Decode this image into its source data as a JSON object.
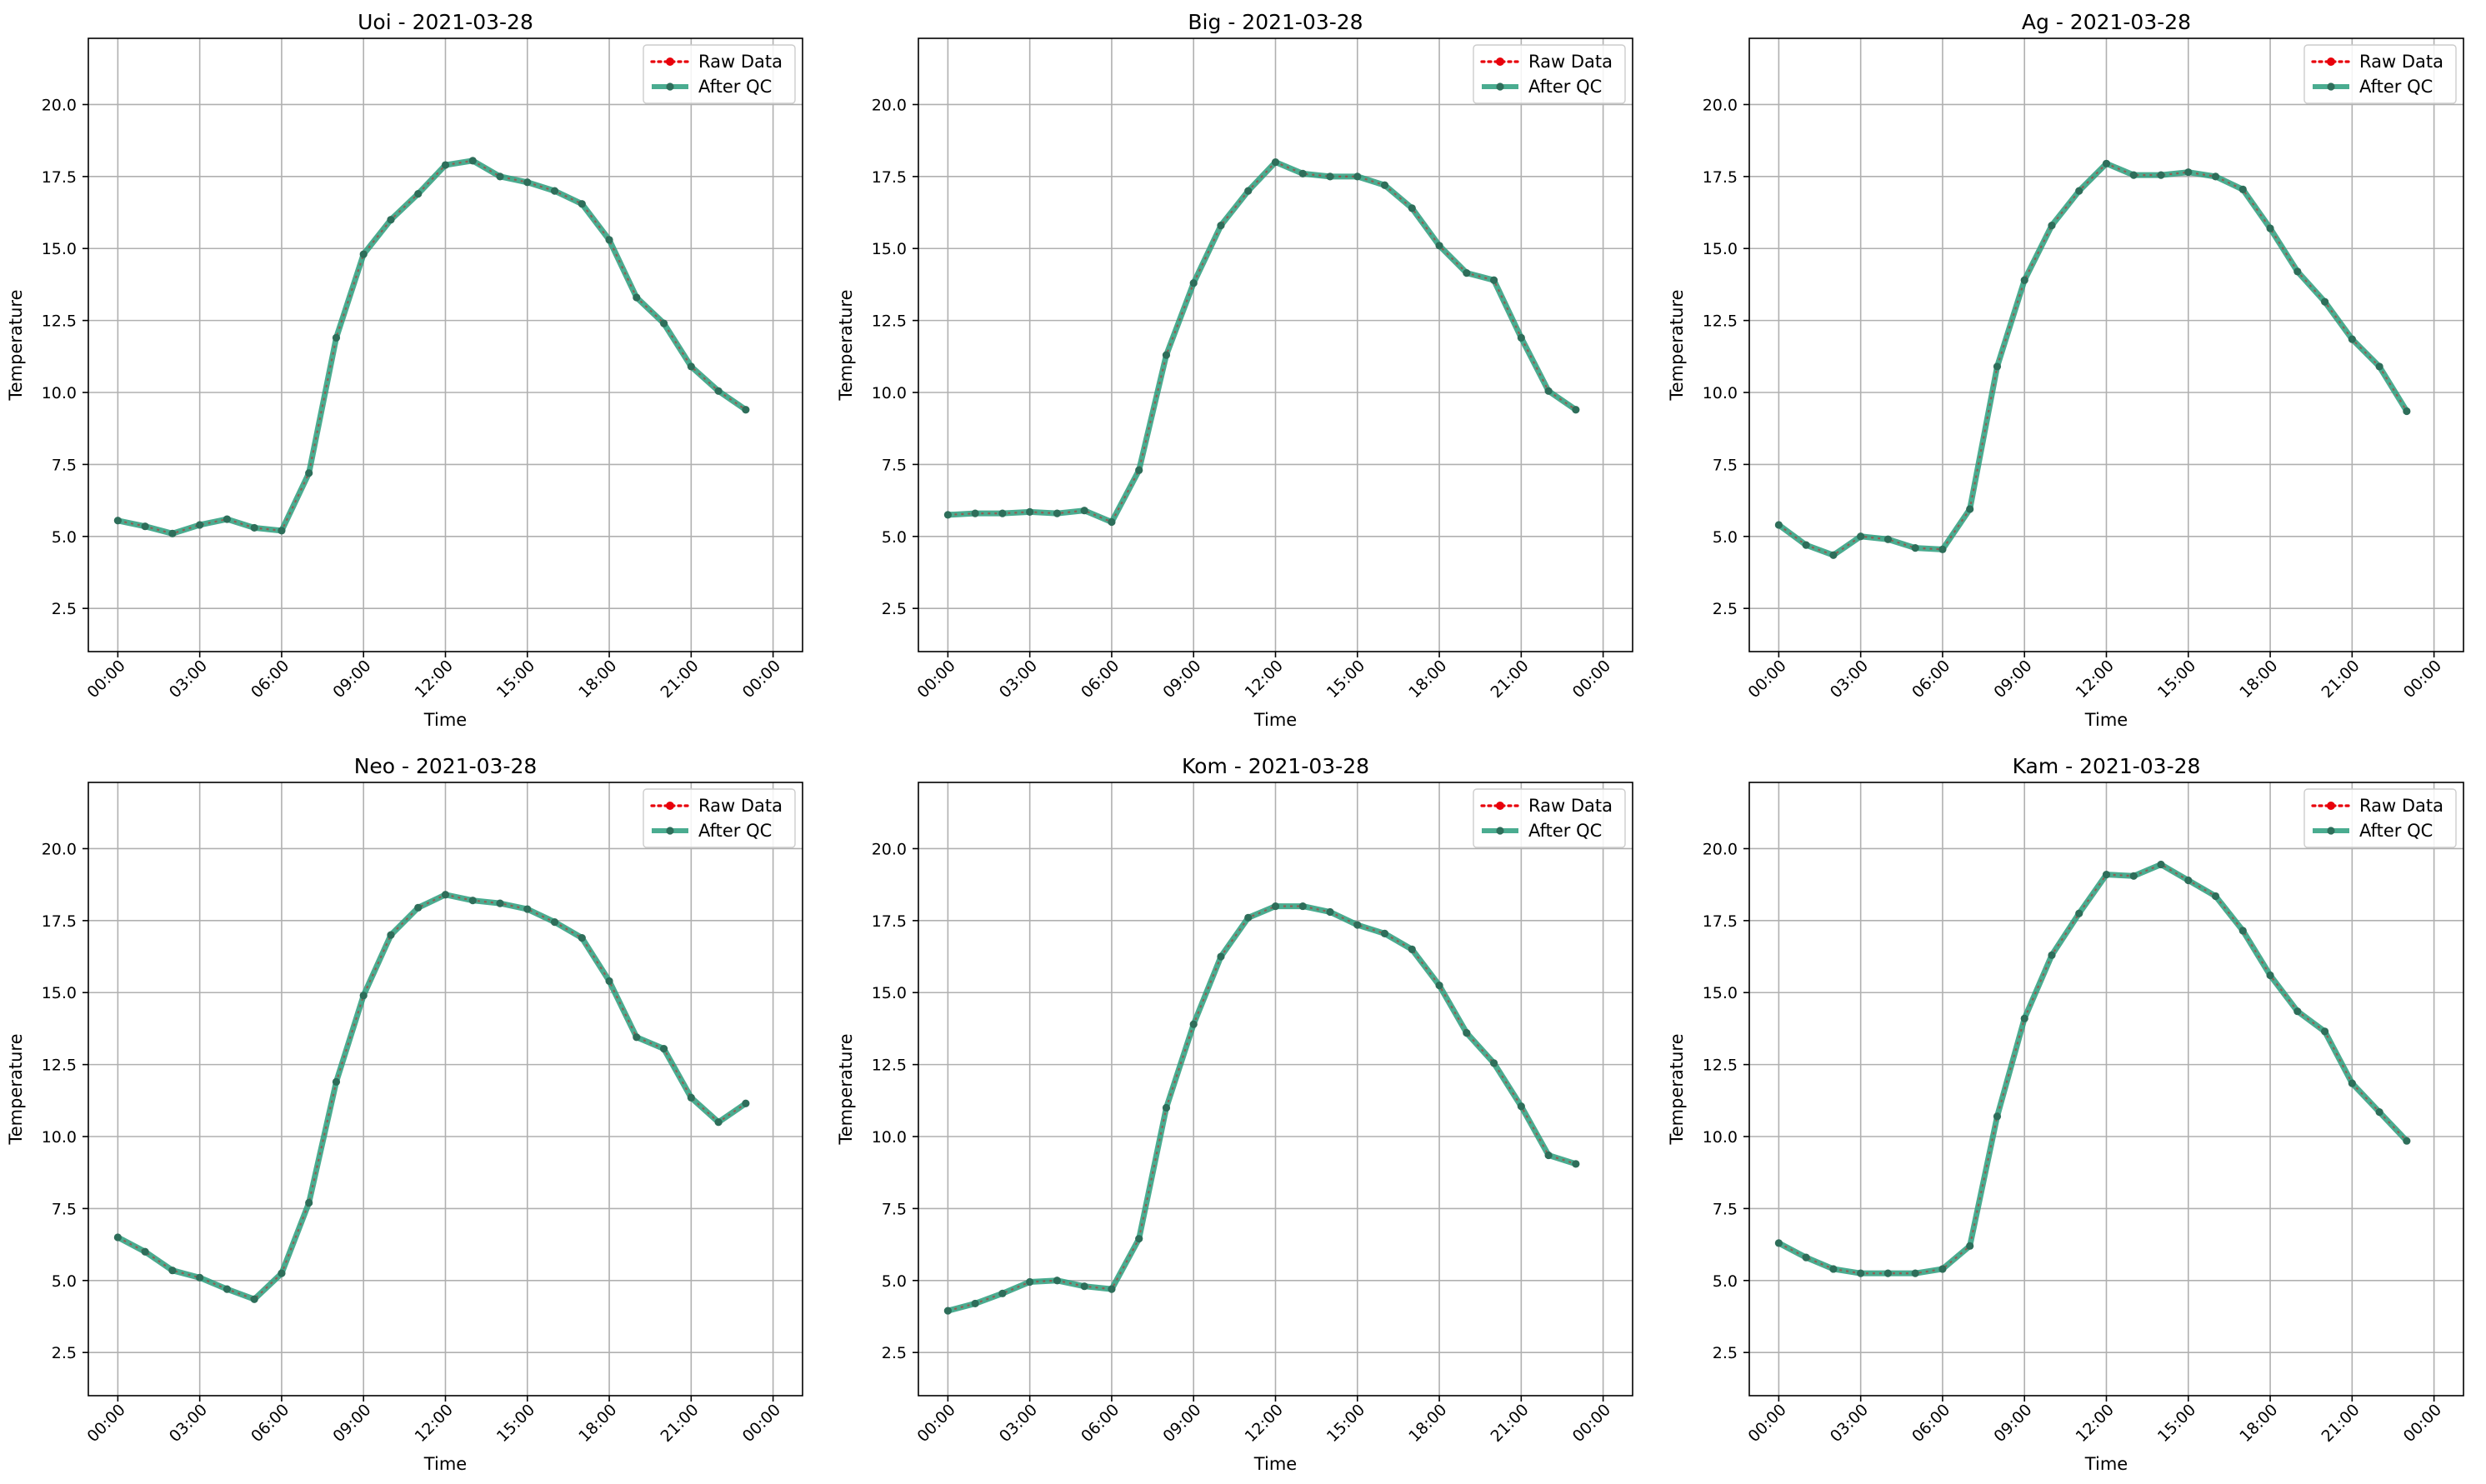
{
  "figure": {
    "legend_entries": [
      "Raw Data",
      "After QC"
    ],
    "legend_placement": "top-right",
    "x_tick_labels": [
      "00:00",
      "03:00",
      "06:00",
      "09:00",
      "12:00",
      "15:00",
      "18:00",
      "21:00",
      "00:00"
    ],
    "y_tick_labels": [
      "2.5",
      "5.0",
      "7.5",
      "10.0",
      "12.5",
      "15.0",
      "17.5",
      "20.0"
    ],
    "colors": {
      "raw": "#e8000b",
      "after_qc": "#2a9d7c",
      "marker": "#2e6e5a",
      "grid": "#b0b0b0"
    }
  },
  "chart_data": [
    {
      "type": "line",
      "title": "Uoi - 2021-03-28",
      "xlabel": "Time",
      "ylabel": "Temperature",
      "x": [
        "00:00",
        "01:00",
        "02:00",
        "03:00",
        "04:00",
        "05:00",
        "06:00",
        "07:00",
        "08:00",
        "09:00",
        "10:00",
        "11:00",
        "12:00",
        "13:00",
        "14:00",
        "15:00",
        "16:00",
        "17:00",
        "18:00",
        "19:00",
        "20:00",
        "21:00",
        "22:00",
        "23:00"
      ],
      "xlim": [
        "2021-03-28 00:00",
        "2021-03-29 00:00"
      ],
      "ylim": [
        1.0,
        22.3
      ],
      "grid": true,
      "series": [
        {
          "name": "Raw Data",
          "values": [
            5.55,
            5.35,
            5.1,
            5.4,
            5.6,
            5.3,
            5.2,
            7.2,
            11.9,
            14.8,
            16.0,
            16.9,
            17.9,
            18.05,
            17.5,
            17.3,
            17.0,
            16.55,
            15.3,
            13.3,
            12.4,
            10.9,
            10.05,
            9.4
          ]
        },
        {
          "name": "After QC",
          "values": [
            5.55,
            5.35,
            5.1,
            5.4,
            5.6,
            5.3,
            5.2,
            7.2,
            11.9,
            14.8,
            16.0,
            16.9,
            17.9,
            18.05,
            17.5,
            17.3,
            17.0,
            16.55,
            15.3,
            13.3,
            12.4,
            10.9,
            10.05,
            9.4
          ]
        }
      ]
    },
    {
      "type": "line",
      "title": "Big - 2021-03-28",
      "xlabel": "Time",
      "ylabel": "Temperature",
      "x": [
        "00:00",
        "01:00",
        "02:00",
        "03:00",
        "04:00",
        "05:00",
        "06:00",
        "07:00",
        "08:00",
        "09:00",
        "10:00",
        "11:00",
        "12:00",
        "13:00",
        "14:00",
        "15:00",
        "16:00",
        "17:00",
        "18:00",
        "19:00",
        "20:00",
        "21:00",
        "22:00",
        "23:00"
      ],
      "xlim": [
        "2021-03-28 00:00",
        "2021-03-29 00:00"
      ],
      "ylim": [
        1.0,
        22.3
      ],
      "grid": true,
      "series": [
        {
          "name": "Raw Data",
          "values": [
            5.75,
            5.8,
            5.8,
            5.85,
            5.8,
            5.9,
            5.5,
            7.3,
            11.3,
            13.8,
            15.8,
            17.0,
            18.0,
            17.6,
            17.5,
            17.5,
            17.2,
            16.4,
            15.1,
            14.15,
            13.9,
            11.9,
            10.05,
            9.4
          ]
        },
        {
          "name": "After QC",
          "values": [
            5.75,
            5.8,
            5.8,
            5.85,
            5.8,
            5.9,
            5.5,
            7.3,
            11.3,
            13.8,
            15.8,
            17.0,
            18.0,
            17.6,
            17.5,
            17.5,
            17.2,
            16.4,
            15.1,
            14.15,
            13.9,
            11.9,
            10.05,
            9.4
          ]
        }
      ]
    },
    {
      "type": "line",
      "title": "Ag - 2021-03-28",
      "xlabel": "Time",
      "ylabel": "Temperature",
      "x": [
        "00:00",
        "01:00",
        "02:00",
        "03:00",
        "04:00",
        "05:00",
        "06:00",
        "07:00",
        "08:00",
        "09:00",
        "10:00",
        "11:00",
        "12:00",
        "13:00",
        "14:00",
        "15:00",
        "16:00",
        "17:00",
        "18:00",
        "19:00",
        "20:00",
        "21:00",
        "22:00",
        "23:00"
      ],
      "xlim": [
        "2021-03-28 00:00",
        "2021-03-29 00:00"
      ],
      "ylim": [
        1.0,
        22.3
      ],
      "grid": true,
      "series": [
        {
          "name": "Raw Data",
          "values": [
            5.4,
            4.7,
            4.35,
            5.0,
            4.9,
            4.6,
            4.55,
            5.95,
            10.9,
            13.9,
            15.8,
            17.0,
            17.95,
            17.55,
            17.55,
            17.65,
            17.5,
            17.05,
            15.7,
            14.2,
            13.15,
            11.85,
            10.9,
            9.35
          ]
        },
        {
          "name": "After QC",
          "values": [
            5.4,
            4.7,
            4.35,
            5.0,
            4.9,
            4.6,
            4.55,
            5.95,
            10.9,
            13.9,
            15.8,
            17.0,
            17.95,
            17.55,
            17.55,
            17.65,
            17.5,
            17.05,
            15.7,
            14.2,
            13.15,
            11.85,
            10.9,
            9.35
          ]
        }
      ]
    },
    {
      "type": "line",
      "title": "Neo - 2021-03-28",
      "xlabel": "Time",
      "ylabel": "Temperature",
      "x": [
        "00:00",
        "01:00",
        "02:00",
        "03:00",
        "04:00",
        "05:00",
        "06:00",
        "07:00",
        "08:00",
        "09:00",
        "10:00",
        "11:00",
        "12:00",
        "13:00",
        "14:00",
        "15:00",
        "16:00",
        "17:00",
        "18:00",
        "19:00",
        "20:00",
        "21:00",
        "22:00",
        "23:00"
      ],
      "xlim": [
        "2021-03-28 00:00",
        "2021-03-29 00:00"
      ],
      "ylim": [
        1.0,
        22.3
      ],
      "grid": true,
      "series": [
        {
          "name": "Raw Data",
          "values": [
            6.5,
            6.0,
            5.35,
            5.1,
            4.7,
            4.35,
            5.25,
            7.7,
            11.9,
            14.9,
            17.0,
            17.95,
            18.4,
            18.2,
            18.1,
            17.9,
            17.45,
            16.9,
            15.4,
            13.45,
            13.05,
            11.35,
            10.5,
            11.15
          ]
        },
        {
          "name": "After QC",
          "values": [
            6.5,
            6.0,
            5.35,
            5.1,
            4.7,
            4.35,
            5.25,
            7.7,
            11.9,
            14.9,
            17.0,
            17.95,
            18.4,
            18.2,
            18.1,
            17.9,
            17.45,
            16.9,
            15.4,
            13.45,
            13.05,
            11.35,
            10.5,
            11.15
          ]
        }
      ]
    },
    {
      "type": "line",
      "title": "Kom - 2021-03-28",
      "xlabel": "Time",
      "ylabel": "Temperature",
      "x": [
        "00:00",
        "01:00",
        "02:00",
        "03:00",
        "04:00",
        "05:00",
        "06:00",
        "07:00",
        "08:00",
        "09:00",
        "10:00",
        "11:00",
        "12:00",
        "13:00",
        "14:00",
        "15:00",
        "16:00",
        "17:00",
        "18:00",
        "19:00",
        "20:00",
        "21:00",
        "22:00",
        "23:00"
      ],
      "xlim": [
        "2021-03-28 00:00",
        "2021-03-29 00:00"
      ],
      "ylim": [
        1.0,
        22.3
      ],
      "grid": true,
      "series": [
        {
          "name": "Raw Data",
          "values": [
            3.95,
            4.2,
            4.55,
            4.95,
            5.0,
            4.8,
            4.7,
            6.45,
            11.0,
            13.9,
            16.25,
            17.6,
            18.0,
            18.0,
            17.8,
            17.35,
            17.05,
            16.5,
            15.25,
            13.6,
            12.55,
            11.05,
            9.35,
            9.05
          ]
        },
        {
          "name": "After QC",
          "values": [
            3.95,
            4.2,
            4.55,
            4.95,
            5.0,
            4.8,
            4.7,
            6.45,
            11.0,
            13.9,
            16.25,
            17.6,
            18.0,
            18.0,
            17.8,
            17.35,
            17.05,
            16.5,
            15.25,
            13.6,
            12.55,
            11.05,
            9.35,
            9.05
          ]
        }
      ]
    },
    {
      "type": "line",
      "title": "Kam - 2021-03-28",
      "xlabel": "Time",
      "ylabel": "Temperature",
      "x": [
        "00:00",
        "01:00",
        "02:00",
        "03:00",
        "04:00",
        "05:00",
        "06:00",
        "07:00",
        "08:00",
        "09:00",
        "10:00",
        "11:00",
        "12:00",
        "13:00",
        "14:00",
        "15:00",
        "16:00",
        "17:00",
        "18:00",
        "19:00",
        "20:00",
        "21:00",
        "22:00",
        "23:00"
      ],
      "xlim": [
        "2021-03-28 00:00",
        "2021-03-29 00:00"
      ],
      "ylim": [
        1.0,
        22.3
      ],
      "grid": true,
      "series": [
        {
          "name": "Raw Data",
          "values": [
            6.3,
            5.8,
            5.4,
            5.25,
            5.25,
            5.25,
            5.4,
            6.2,
            10.7,
            14.1,
            16.3,
            17.75,
            19.1,
            19.05,
            19.45,
            18.9,
            18.35,
            17.15,
            15.6,
            14.35,
            13.65,
            11.85,
            10.85,
            9.85
          ]
        },
        {
          "name": "After QC",
          "values": [
            6.3,
            5.8,
            5.4,
            5.25,
            5.25,
            5.25,
            5.4,
            6.2,
            10.7,
            14.1,
            16.3,
            17.75,
            19.1,
            19.05,
            19.45,
            18.9,
            18.35,
            17.15,
            15.6,
            14.35,
            13.65,
            11.85,
            10.85,
            9.85
          ]
        }
      ]
    }
  ]
}
